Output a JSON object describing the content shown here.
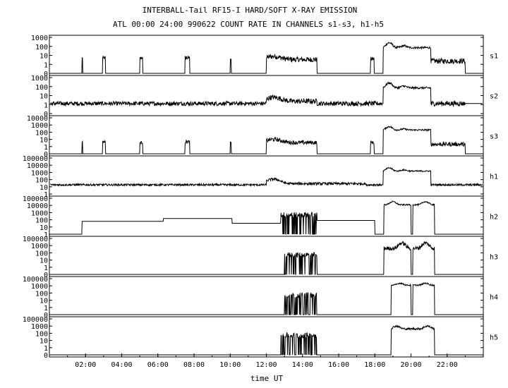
{
  "chart_data": {
    "type": "line",
    "title": "INTERBALL-Tail RF15-I HARD/SOFT X-RAY EMISSION",
    "subtitle": "ATL 00:00 24:00 990622  COUNT RATE IN CHANNELS s1-s3, h1-h5",
    "xlabel": "time UT",
    "xlim": [
      0,
      24
    ],
    "x_ticks": [
      "02:00",
      "04:00",
      "06:00",
      "08:00",
      "10:00",
      "12:00",
      "14:00",
      "16:00",
      "18:00",
      "20:00",
      "22:00"
    ],
    "y_scale": "log",
    "panels": [
      {
        "name": "s1",
        "ylim": [
          0,
          1000
        ],
        "y_ticks": [
          "1000",
          "100",
          "10",
          "1",
          "0"
        ],
        "baseline": 0,
        "segments": [
          {
            "t0": 1.8,
            "t1": 1.85,
            "level": 10,
            "noise": 0.05
          },
          {
            "t0": 2.95,
            "t1": 3.1,
            "level": 10,
            "noise": 0.15
          },
          {
            "t0": 5.0,
            "t1": 5.15,
            "level": 10,
            "noise": 0.15
          },
          {
            "t0": 7.5,
            "t1": 7.75,
            "level": 10,
            "noise": 0.2
          },
          {
            "t0": 10.0,
            "t1": 10.05,
            "level": 8,
            "noise": 0.05
          },
          {
            "t0": 12.0,
            "t1": 14.8,
            "level": 7,
            "noise": 0.25,
            "bump": [
              12.4,
              14,
              0.5
            ]
          },
          {
            "t0": 17.75,
            "t1": 17.95,
            "level": 8,
            "noise": 0.2
          },
          {
            "t0": 18.45,
            "t1": 21.1,
            "level": 100,
            "noise": 0.1,
            "bump": [
              18.8,
              300,
              0.2
            ],
            "bump2": [
              19.6,
              150,
              0.2
            ]
          },
          {
            "t0": 21.1,
            "t1": 23.0,
            "level": 5,
            "noise": 0.25
          }
        ]
      },
      {
        "name": "s2",
        "ylim": [
          0,
          1000
        ],
        "y_ticks": [
          "1000",
          "100",
          "10",
          "1",
          "0"
        ],
        "baseline": 3,
        "segments": [
          {
            "t0": 0.05,
            "t1": 12.0,
            "level": 3,
            "noise": 0.2
          },
          {
            "t0": 12.0,
            "t1": 14.8,
            "level": 5,
            "noise": 0.25,
            "bump": [
              12.4,
              12,
              0.5
            ]
          },
          {
            "t0": 14.8,
            "t1": 18.4,
            "level": 3,
            "noise": 0.22
          },
          {
            "t0": 18.45,
            "t1": 21.1,
            "level": 100,
            "noise": 0.1,
            "bump": [
              18.8,
              300,
              0.2
            ],
            "bump2": [
              19.6,
              150,
              0.2
            ]
          },
          {
            "t0": 21.1,
            "t1": 23.0,
            "level": 3,
            "noise": 0.25
          }
        ]
      },
      {
        "name": "s3",
        "ylim": [
          0,
          10000
        ],
        "y_ticks": [
          "10000",
          "1000",
          "100",
          "10",
          "1",
          "0"
        ],
        "baseline": 0,
        "segments": [
          {
            "t0": 1.8,
            "t1": 1.85,
            "level": 10,
            "noise": 0.05
          },
          {
            "t0": 2.95,
            "t1": 3.1,
            "level": 10,
            "noise": 0.15
          },
          {
            "t0": 5.0,
            "t1": 5.15,
            "level": 8,
            "noise": 0.15
          },
          {
            "t0": 7.5,
            "t1": 7.75,
            "level": 10,
            "noise": 0.2
          },
          {
            "t0": 10.0,
            "t1": 10.05,
            "level": 8,
            "noise": 0.05
          },
          {
            "t0": 12.0,
            "t1": 14.8,
            "level": 8,
            "noise": 0.25,
            "bump": [
              12.4,
              20,
              0.5
            ]
          },
          {
            "t0": 17.75,
            "t1": 17.95,
            "level": 8,
            "noise": 0.2
          },
          {
            "t0": 18.45,
            "t1": 21.1,
            "level": 300,
            "noise": 0.1,
            "bump": [
              18.8,
              800,
              0.2
            ],
            "bump2": [
              19.6,
              400,
              0.2
            ]
          },
          {
            "t0": 21.1,
            "t1": 23.0,
            "level": 5,
            "noise": 0.25
          }
        ]
      },
      {
        "name": "h1",
        "ylim": [
          0,
          100000
        ],
        "y_ticks": [
          "100000",
          "10000",
          "1000",
          "100",
          "10",
          "1"
        ],
        "baseline": 8,
        "segments": [
          {
            "t0": 0.05,
            "t1": 12.0,
            "level": 8,
            "noise": 0.15
          },
          {
            "t0": 12.0,
            "t1": 17.5,
            "level": 12,
            "noise": 0.2,
            "bump": [
              12.4,
              60,
              0.4
            ]
          },
          {
            "t0": 17.5,
            "t1": 18.4,
            "level": 8,
            "noise": 0.15
          },
          {
            "t0": 18.45,
            "t1": 21.1,
            "level": 1000,
            "noise": 0.1,
            "bump": [
              18.8,
              3000,
              0.2
            ],
            "bump2": [
              19.6,
              1500,
              0.2
            ]
          },
          {
            "t0": 21.1,
            "t1": 23.95,
            "level": 8,
            "noise": 0.15
          }
        ]
      },
      {
        "name": "h2",
        "ylim": [
          0,
          100000
        ],
        "y_ticks": [
          "100000",
          "10000",
          "1000",
          "100",
          "10",
          "1"
        ],
        "baseline": 0,
        "segments": [
          {
            "t0": 1.8,
            "t1": 6.3,
            "level": 30,
            "noise": 0.0
          },
          {
            "t0": 6.3,
            "t1": 10.1,
            "level": 80,
            "noise": 0.0
          },
          {
            "t0": 10.1,
            "t1": 12.8,
            "level": 15,
            "noise": 0.0
          },
          {
            "t0": 12.8,
            "t1": 14.8,
            "level": 300,
            "noise": 0.4
          },
          {
            "t0": 14.8,
            "t1": 18.0,
            "level": 40,
            "noise": 0.0
          },
          {
            "t0": 18.5,
            "t1": 20.0,
            "level": 10000,
            "noise": 0.1,
            "bump": [
              19.0,
              30000,
              0.2
            ]
          },
          {
            "t0": 20.1,
            "t1": 21.3,
            "level": 10000,
            "noise": 0.1,
            "bump": [
              20.8,
              30000,
              0.2
            ]
          }
        ]
      },
      {
        "name": "h3",
        "ylim": [
          0,
          100000
        ],
        "y_ticks": [
          "100000",
          "1000",
          "100",
          "10",
          "1",
          "0"
        ],
        "baseline": 0,
        "segments": [
          {
            "t0": 13.0,
            "t1": 14.8,
            "level": 300,
            "noise": 0.4
          },
          {
            "t0": 18.5,
            "t1": 20.0,
            "level": 3000,
            "noise": 0.3,
            "bump": [
              19.5,
              20000,
              0.2
            ]
          },
          {
            "t0": 20.1,
            "t1": 21.3,
            "level": 3000,
            "noise": 0.3,
            "bump": [
              20.8,
              20000,
              0.2
            ]
          }
        ]
      },
      {
        "name": "h4",
        "ylim": [
          0,
          100000
        ],
        "y_ticks": [
          "100000",
          "1000",
          "100",
          "10",
          "1",
          "0"
        ],
        "baseline": 0,
        "segments": [
          {
            "t0": 13.0,
            "t1": 14.8,
            "level": 300,
            "noise": 0.4
          },
          {
            "t0": 18.9,
            "t1": 20.0,
            "level": 10000,
            "noise": 0.1,
            "bump": [
              19.4,
              20000,
              0.2
            ]
          },
          {
            "t0": 20.1,
            "t1": 21.3,
            "level": 10000,
            "noise": 0.1,
            "bump": [
              20.8,
              20000,
              0.2
            ]
          }
        ]
      },
      {
        "name": "h5",
        "ylim": [
          0,
          100000
        ],
        "y_ticks": [
          "100000",
          "1000",
          "100",
          "10",
          "1",
          "0"
        ],
        "baseline": 0,
        "segments": [
          {
            "t0": 12.8,
            "t1": 14.8,
            "level": 300,
            "noise": 0.4
          },
          {
            "t0": 18.9,
            "t1": 21.3,
            "level": 3000,
            "noise": 0.15,
            "bump": [
              19.2,
              8000,
              0.2
            ],
            "bump2": [
              20.9,
              8000,
              0.2
            ]
          }
        ]
      }
    ]
  }
}
